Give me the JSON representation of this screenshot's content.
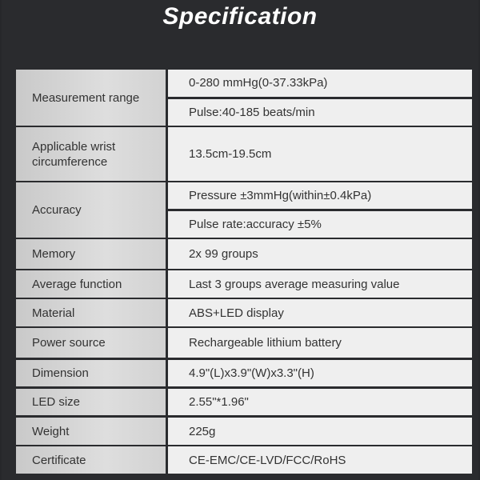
{
  "title": "Specification",
  "rows": [
    {
      "label": "Measurement range",
      "values": [
        "0-280 mmHg(0-37.33kPa)",
        "Pulse:40-185 beats/min"
      ]
    },
    {
      "label": "Applicable wrist circumference",
      "values": [
        "13.5cm-19.5cm"
      ]
    },
    {
      "label": "Accuracy",
      "values": [
        "Pressure ±3mmHg(within±0.4kPa)",
        "Pulse rate:accuracy ±5%"
      ]
    },
    {
      "label": "Memory",
      "values": [
        "2x 99 groups"
      ]
    },
    {
      "label": "Average function",
      "values": [
        "Last 3 groups average measuring value"
      ]
    },
    {
      "label": "Material",
      "values": [
        "ABS+LED display"
      ]
    },
    {
      "label": "Power source",
      "values": [
        "Rechargeable lithium battery"
      ]
    },
    {
      "label": "Dimension",
      "values": [
        "4.9\"(L)x3.9\"(W)x3.3\"(H)"
      ]
    },
    {
      "label": "LED size",
      "values": [
        "2.55\"*1.96\""
      ]
    },
    {
      "label": "Weight",
      "values": [
        "225g"
      ]
    },
    {
      "label": "Certificate",
      "values": [
        "CE-EMC/CE-LVD/FCC/RoHS"
      ]
    }
  ]
}
